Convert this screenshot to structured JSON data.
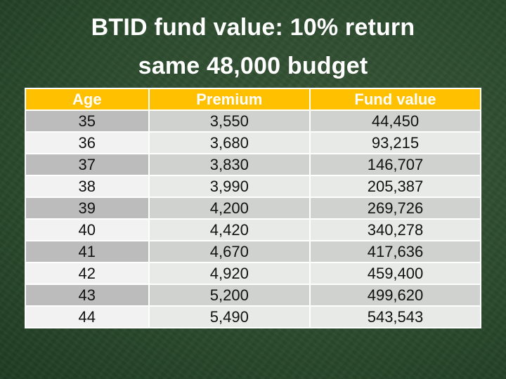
{
  "slide": {
    "title_line1": "BTID fund value: 10% return",
    "title_line2": "same 48,000 budget"
  },
  "table": {
    "columns": [
      "Age",
      "Premium",
      "Fund value"
    ],
    "rows": [
      [
        "35",
        "3,550",
        "44,450"
      ],
      [
        "36",
        "3,680",
        "93,215"
      ],
      [
        "37",
        "3,830",
        "146,707"
      ],
      [
        "38",
        "3,990",
        "205,387"
      ],
      [
        "39",
        "4,200",
        "269,726"
      ],
      [
        "40",
        "4,420",
        "340,278"
      ],
      [
        "41",
        "4,670",
        "417,636"
      ],
      [
        "42",
        "4,920",
        "459,400"
      ],
      [
        "43",
        "5,200",
        "499,620"
      ],
      [
        "44",
        "5,490",
        "543,543"
      ]
    ]
  },
  "colors": {
    "slide_bg_center": "#3a5839",
    "slide_bg_edge": "#16301a",
    "title_text": "#ffffff",
    "header_bg": "#FFC000",
    "header_text": "#ffffff",
    "row_odd_first": "#BCBCBC",
    "row_odd_cell": "#CFD2CF",
    "row_even_first": "#F2F2F2",
    "row_even_cell": "#E8EAE8",
    "cell_border": "#ffffff",
    "body_text": "#111111"
  }
}
